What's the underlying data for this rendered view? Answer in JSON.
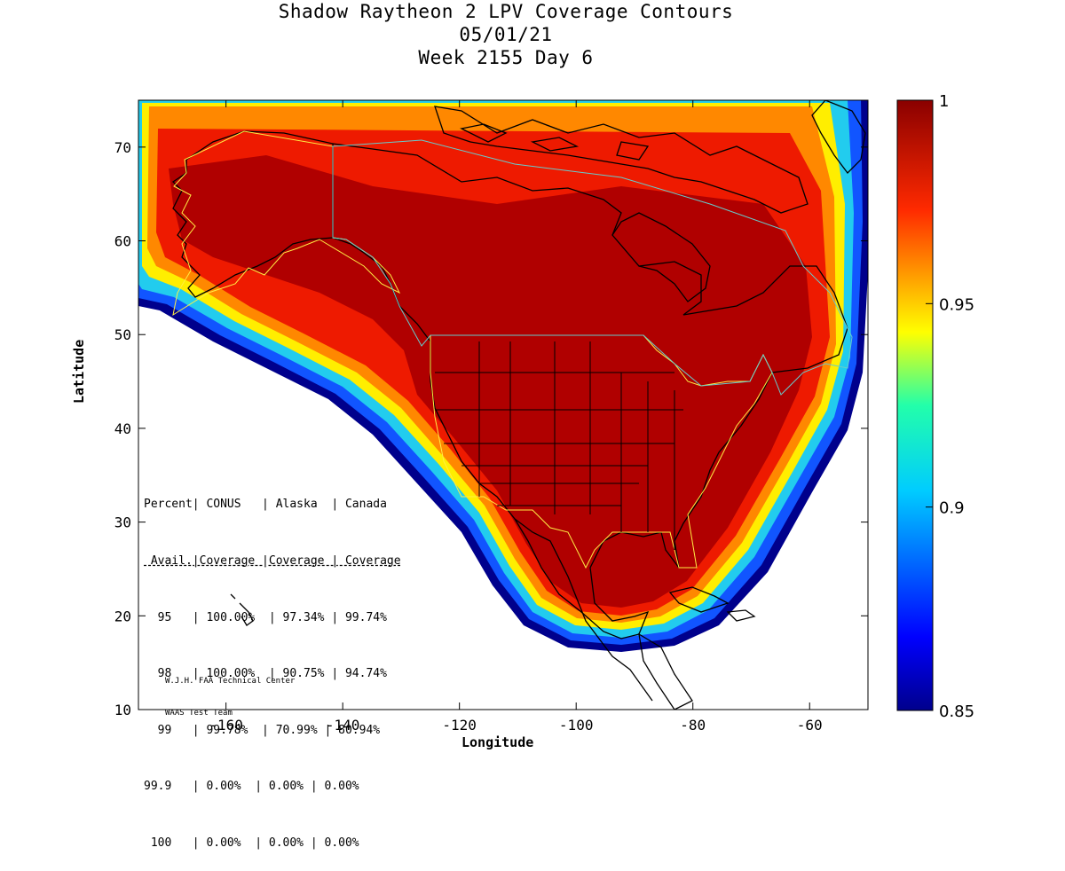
{
  "title": {
    "line1": "Shadow Raytheon 2 LPV Coverage Contours",
    "line2": "05/01/21",
    "line3": "Week 2155 Day 6"
  },
  "axes": {
    "xlabel": "Longitude",
    "ylabel": "Latitude",
    "xticks": [
      "-160",
      "-140",
      "-120",
      "-100",
      "-80",
      "-60"
    ],
    "yticks": [
      "10",
      "20",
      "30",
      "40",
      "50",
      "60",
      "70"
    ],
    "xlim": [
      -175,
      -50
    ],
    "ylim": [
      10,
      75
    ]
  },
  "colorbar": {
    "ticks": [
      "1",
      "0.95",
      "0.9",
      "0.85"
    ],
    "range": [
      0.85,
      1.0
    ],
    "colormap": "jet"
  },
  "stats_table": {
    "rows": [
      "Percent| CONUS   | Alaska  | Canada",
      " Avail.|Coverage |Coverage | Coverage",
      "  95   | 100.00%  | 97.34% | 99.74%",
      "  98   | 100.00%  | 90.75% | 94.74%",
      "  99   | 99.78%  | 70.99% | 80.94%",
      "99.9   | 0.00%  | 0.00% | 0.00%",
      " 100   | 0.00%  | 0.00% | 0.00%"
    ]
  },
  "credit": {
    "line1": "W.J.H. FAA Technical Center",
    "line2": "WAAS Test Team"
  },
  "colors": {
    "full_coverage": "#b00000",
    "red": "#ee1a00",
    "orange": "#ff8800",
    "yellow": "#ffee00",
    "cyan": "#22ccee",
    "blue": "#1155ff",
    "navy": "#00008c",
    "coastline": "#000000",
    "border_yellow": "#ffee44",
    "border_cyan": "#66cccc"
  }
}
